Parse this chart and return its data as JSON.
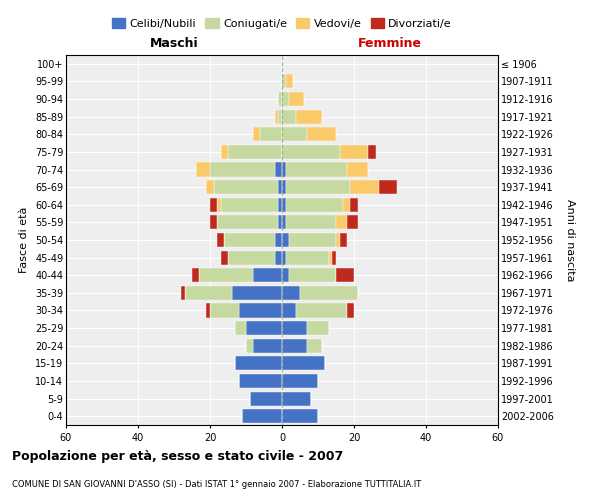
{
  "age_groups": [
    "0-4",
    "5-9",
    "10-14",
    "15-19",
    "20-24",
    "25-29",
    "30-34",
    "35-39",
    "40-44",
    "45-49",
    "50-54",
    "55-59",
    "60-64",
    "65-69",
    "70-74",
    "75-79",
    "80-84",
    "85-89",
    "90-94",
    "95-99",
    "100+"
  ],
  "birth_years": [
    "2002-2006",
    "1997-2001",
    "1992-1996",
    "1987-1991",
    "1982-1986",
    "1977-1981",
    "1972-1976",
    "1967-1971",
    "1962-1966",
    "1957-1961",
    "1952-1956",
    "1947-1951",
    "1942-1946",
    "1937-1941",
    "1932-1936",
    "1927-1931",
    "1922-1926",
    "1917-1921",
    "1912-1916",
    "1907-1911",
    "≤ 1906"
  ],
  "male": {
    "celibi": [
      11,
      9,
      12,
      13,
      8,
      10,
      12,
      14,
      8,
      2,
      2,
      1,
      1,
      1,
      2,
      0,
      0,
      0,
      0,
      0,
      0
    ],
    "coniugati": [
      0,
      0,
      0,
      0,
      2,
      3,
      8,
      13,
      15,
      13,
      14,
      17,
      16,
      18,
      18,
      15,
      6,
      1,
      1,
      0,
      0
    ],
    "vedovi": [
      0,
      0,
      0,
      0,
      0,
      0,
      0,
      0,
      0,
      0,
      0,
      0,
      1,
      2,
      4,
      2,
      2,
      1,
      0,
      0,
      0
    ],
    "divorziati": [
      0,
      0,
      0,
      0,
      0,
      0,
      1,
      1,
      2,
      2,
      2,
      2,
      2,
      0,
      0,
      0,
      0,
      0,
      0,
      0,
      0
    ]
  },
  "female": {
    "nubili": [
      10,
      8,
      10,
      12,
      7,
      7,
      4,
      5,
      2,
      1,
      2,
      1,
      1,
      1,
      1,
      0,
      0,
      0,
      0,
      0,
      0
    ],
    "coniugate": [
      0,
      0,
      0,
      0,
      4,
      6,
      14,
      16,
      13,
      12,
      13,
      14,
      16,
      18,
      17,
      16,
      7,
      4,
      2,
      1,
      0
    ],
    "vedove": [
      0,
      0,
      0,
      0,
      0,
      0,
      0,
      0,
      0,
      1,
      1,
      3,
      2,
      8,
      6,
      8,
      8,
      7,
      4,
      2,
      0
    ],
    "divorziate": [
      0,
      0,
      0,
      0,
      0,
      0,
      2,
      0,
      5,
      1,
      2,
      3,
      2,
      5,
      0,
      2,
      0,
      0,
      0,
      0,
      0
    ]
  },
  "colors": {
    "celibi": "#4472C4",
    "coniugati": "#c5d9a0",
    "vedovi": "#f9c96a",
    "divorziati": "#c0291e"
  },
  "xlim": 60,
  "title": "Popolazione per età, sesso e stato civile - 2007",
  "subtitle": "COMUNE DI SAN GIOVANNI D'ASSO (SI) - Dati ISTAT 1° gennaio 2007 - Elaborazione TUTTITALIA.IT",
  "ylabel_left": "Fasce di età",
  "ylabel_right": "Anni di nascita",
  "xlabel_left": "Maschi",
  "xlabel_right": "Femmine"
}
